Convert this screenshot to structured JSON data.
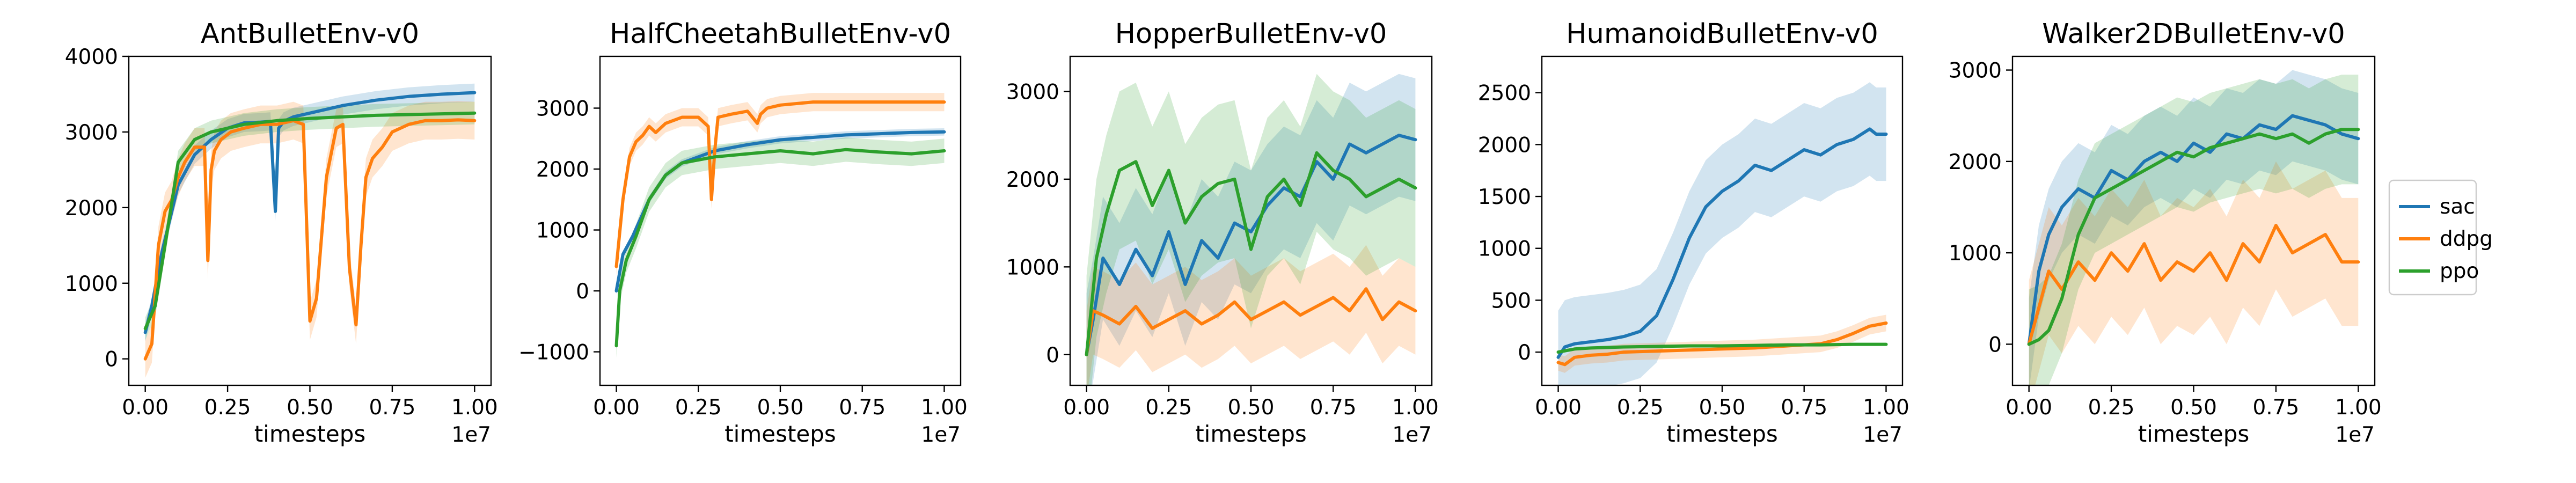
{
  "figure": {
    "x_label": "timesteps",
    "x_offset_label": "1e7",
    "x_ticks": [
      "0.00",
      "0.25",
      "0.50",
      "0.75",
      "1.00"
    ]
  },
  "legend": [
    {
      "name": "sac",
      "color": "#1f77b4"
    },
    {
      "name": "ddpg",
      "color": "#ff7f0e"
    },
    {
      "name": "ppo",
      "color": "#2ca02c"
    }
  ],
  "chart_data": [
    {
      "type": "line",
      "title": "AntBulletEnv-v0",
      "xlabel": "timesteps",
      "x_unit_multiplier": "1e7",
      "xlim": [
        -0.05,
        1.05
      ],
      "ylim": [
        -350,
        4000
      ],
      "y_ticks": [
        0,
        1000,
        2000,
        3000,
        4000
      ],
      "y_tick_labels": [
        "0",
        "1000",
        "2000",
        "3000",
        "4000"
      ],
      "series": [
        {
          "name": "sac",
          "color": "#1f77b4",
          "x": [
            0,
            0.02,
            0.05,
            0.1,
            0.15,
            0.2,
            0.25,
            0.3,
            0.35,
            0.38,
            0.395,
            0.405,
            0.42,
            0.45,
            0.5,
            0.6,
            0.7,
            0.8,
            0.9,
            1.0
          ],
          "y": [
            350,
            700,
            1400,
            2300,
            2700,
            2900,
            3050,
            3120,
            3130,
            3140,
            1950,
            3050,
            3140,
            3200,
            3250,
            3350,
            3420,
            3470,
            3500,
            3520
          ],
          "band": 120
        },
        {
          "name": "ddpg",
          "color": "#ff7f0e",
          "x": [
            0,
            0.02,
            0.04,
            0.06,
            0.08,
            0.1,
            0.12,
            0.15,
            0.18,
            0.19,
            0.2,
            0.21,
            0.23,
            0.26,
            0.3,
            0.35,
            0.4,
            0.45,
            0.48,
            0.5,
            0.52,
            0.55,
            0.58,
            0.6,
            0.62,
            0.64,
            0.655,
            0.67,
            0.69,
            0.72,
            0.75,
            0.8,
            0.85,
            0.9,
            0.95,
            1.0
          ],
          "y": [
            0,
            200,
            1500,
            1950,
            2100,
            2400,
            2600,
            2800,
            2800,
            1300,
            2500,
            2750,
            2900,
            3000,
            3050,
            3100,
            3100,
            3150,
            3100,
            500,
            800,
            2400,
            3050,
            3100,
            1200,
            450,
            1500,
            2400,
            2650,
            2800,
            3000,
            3100,
            3150,
            3150,
            3160,
            3150
          ],
          "band": 250
        },
        {
          "name": "ppo",
          "color": "#2ca02c",
          "x": [
            0,
            0.03,
            0.06,
            0.1,
            0.15,
            0.2,
            0.25,
            0.3,
            0.4,
            0.5,
            0.6,
            0.7,
            0.8,
            0.9,
            1.0
          ],
          "y": [
            400,
            700,
            1500,
            2600,
            2900,
            3000,
            3050,
            3100,
            3150,
            3180,
            3200,
            3220,
            3230,
            3240,
            3250
          ],
          "band": 150
        }
      ]
    },
    {
      "type": "line",
      "title": "HalfCheetahBulletEnv-v0",
      "xlabel": "timesteps",
      "x_unit_multiplier": "1e7",
      "xlim": [
        -0.05,
        1.05
      ],
      "ylim": [
        -1550,
        3850
      ],
      "y_ticks": [
        -1000,
        0,
        1000,
        2000,
        3000
      ],
      "y_tick_labels": [
        "−1000",
        "0",
        "1000",
        "2000",
        "3000"
      ],
      "series": [
        {
          "name": "sac",
          "color": "#1f77b4",
          "x": [
            0,
            0.02,
            0.05,
            0.1,
            0.15,
            0.2,
            0.3,
            0.4,
            0.5,
            0.6,
            0.7,
            0.8,
            0.9,
            1.0
          ],
          "y": [
            0,
            600,
            900,
            1500,
            1900,
            2100,
            2300,
            2400,
            2480,
            2520,
            2560,
            2580,
            2600,
            2610
          ],
          "band": 60
        },
        {
          "name": "ddpg",
          "color": "#ff7f0e",
          "x": [
            0,
            0.02,
            0.04,
            0.06,
            0.08,
            0.1,
            0.12,
            0.15,
            0.2,
            0.25,
            0.28,
            0.29,
            0.3,
            0.31,
            0.35,
            0.4,
            0.43,
            0.44,
            0.46,
            0.5,
            0.6,
            0.7,
            0.8,
            0.9,
            1.0
          ],
          "y": [
            400,
            1500,
            2200,
            2450,
            2550,
            2700,
            2600,
            2750,
            2850,
            2850,
            2700,
            1500,
            2300,
            2850,
            2900,
            2950,
            2750,
            2900,
            3000,
            3050,
            3100,
            3100,
            3100,
            3100,
            3100
          ],
          "band": 150
        },
        {
          "name": "ppo",
          "color": "#2ca02c",
          "x": [
            0,
            0.01,
            0.03,
            0.06,
            0.1,
            0.15,
            0.2,
            0.25,
            0.3,
            0.4,
            0.5,
            0.6,
            0.7,
            0.8,
            0.9,
            1.0
          ],
          "y": [
            -900,
            0,
            500,
            900,
            1500,
            1900,
            2100,
            2150,
            2200,
            2250,
            2300,
            2250,
            2320,
            2280,
            2250,
            2300
          ],
          "band": 200
        }
      ]
    },
    {
      "type": "line",
      "title": "HopperBulletEnv-v0",
      "xlabel": "timesteps",
      "x_unit_multiplier": "1e7",
      "xlim": [
        -0.05,
        1.05
      ],
      "ylim": [
        -350,
        3400
      ],
      "y_ticks": [
        0,
        1000,
        2000,
        3000
      ],
      "y_tick_labels": [
        "0",
        "1000",
        "2000",
        "3000"
      ],
      "series": [
        {
          "name": "sac",
          "color": "#1f77b4",
          "x": [
            0,
            0.02,
            0.05,
            0.1,
            0.15,
            0.2,
            0.25,
            0.3,
            0.35,
            0.4,
            0.45,
            0.5,
            0.55,
            0.6,
            0.65,
            0.7,
            0.75,
            0.8,
            0.85,
            0.9,
            0.95,
            1.0
          ],
          "y": [
            0,
            400,
            1100,
            800,
            1200,
            900,
            1400,
            800,
            1300,
            1100,
            1500,
            1400,
            1700,
            1900,
            1800,
            2200,
            2000,
            2400,
            2300,
            2400,
            2500,
            2450
          ],
          "band": 700
        },
        {
          "name": "ddpg",
          "color": "#ff7f0e",
          "x": [
            0,
            0.02,
            0.05,
            0.1,
            0.15,
            0.2,
            0.25,
            0.3,
            0.35,
            0.4,
            0.45,
            0.5,
            0.55,
            0.6,
            0.65,
            0.7,
            0.75,
            0.8,
            0.85,
            0.9,
            0.95,
            1.0
          ],
          "y": [
            0,
            500,
            450,
            350,
            550,
            300,
            400,
            500,
            350,
            450,
            600,
            400,
            500,
            600,
            450,
            550,
            650,
            500,
            750,
            400,
            600,
            500
          ],
          "band": 500
        },
        {
          "name": "ppo",
          "color": "#2ca02c",
          "x": [
            0,
            0.03,
            0.06,
            0.1,
            0.15,
            0.2,
            0.25,
            0.3,
            0.35,
            0.4,
            0.45,
            0.5,
            0.55,
            0.6,
            0.65,
            0.7,
            0.75,
            0.8,
            0.85,
            0.9,
            0.95,
            1.0
          ],
          "y": [
            0,
            1100,
            1600,
            2100,
            2200,
            1700,
            2100,
            1500,
            1800,
            1950,
            2000,
            1200,
            1800,
            2000,
            1700,
            2300,
            2100,
            2000,
            1800,
            1900,
            2000,
            1900
          ],
          "band": 900
        }
      ]
    },
    {
      "type": "line",
      "title": "HumanoidBulletEnv-v0",
      "xlabel": "timesteps",
      "x_unit_multiplier": "1e7",
      "xlim": [
        -0.05,
        1.05
      ],
      "ylim": [
        -320,
        2850
      ],
      "y_ticks": [
        0,
        500,
        1000,
        1500,
        2000,
        2500
      ],
      "y_tick_labels": [
        "0",
        "500",
        "1000",
        "1500",
        "2000",
        "2500"
      ],
      "series": [
        {
          "name": "sac",
          "color": "#1f77b4",
          "x": [
            0,
            0.02,
            0.05,
            0.1,
            0.15,
            0.2,
            0.25,
            0.3,
            0.35,
            0.4,
            0.45,
            0.5,
            0.55,
            0.6,
            0.65,
            0.7,
            0.75,
            0.8,
            0.85,
            0.9,
            0.95,
            0.97,
            1.0
          ],
          "y": [
            -50,
            50,
            80,
            100,
            120,
            150,
            200,
            350,
            700,
            1100,
            1400,
            1550,
            1650,
            1800,
            1750,
            1850,
            1950,
            1900,
            2000,
            2050,
            2150,
            2100,
            2100
          ],
          "band": 450
        },
        {
          "name": "ddpg",
          "color": "#ff7f0e",
          "x": [
            0,
            0.02,
            0.05,
            0.1,
            0.15,
            0.2,
            0.3,
            0.4,
            0.5,
            0.6,
            0.7,
            0.8,
            0.85,
            0.9,
            0.95,
            1.0
          ],
          "y": [
            -100,
            -120,
            -50,
            -30,
            -20,
            0,
            10,
            20,
            30,
            40,
            60,
            80,
            120,
            180,
            250,
            280
          ],
          "band": 80
        },
        {
          "name": "ppo",
          "color": "#2ca02c",
          "x": [
            0,
            0.05,
            0.1,
            0.2,
            0.3,
            0.4,
            0.5,
            0.6,
            0.7,
            0.8,
            0.9,
            1.0
          ],
          "y": [
            0,
            30,
            40,
            50,
            55,
            60,
            60,
            65,
            70,
            70,
            75,
            75
          ],
          "band": 15
        }
      ]
    },
    {
      "type": "line",
      "title": "Walker2DBulletEnv-v0",
      "xlabel": "timesteps",
      "x_unit_multiplier": "1e7",
      "xlim": [
        -0.05,
        1.05
      ],
      "ylim": [
        -450,
        3150
      ],
      "y_ticks": [
        0,
        1000,
        2000,
        3000
      ],
      "y_tick_labels": [
        "0",
        "1000",
        "2000",
        "3000"
      ],
      "series": [
        {
          "name": "sac",
          "color": "#1f77b4",
          "x": [
            0,
            0.03,
            0.06,
            0.1,
            0.15,
            0.2,
            0.25,
            0.3,
            0.35,
            0.4,
            0.45,
            0.5,
            0.55,
            0.6,
            0.65,
            0.7,
            0.75,
            0.8,
            0.85,
            0.9,
            0.95,
            1.0
          ],
          "y": [
            0,
            800,
            1200,
            1500,
            1700,
            1600,
            1900,
            1800,
            2000,
            2100,
            2000,
            2200,
            2100,
            2300,
            2250,
            2400,
            2350,
            2500,
            2450,
            2400,
            2300,
            2250
          ],
          "band": 500
        },
        {
          "name": "ddpg",
          "color": "#ff7f0e",
          "x": [
            0,
            0.03,
            0.06,
            0.1,
            0.15,
            0.2,
            0.25,
            0.3,
            0.35,
            0.4,
            0.45,
            0.5,
            0.55,
            0.6,
            0.65,
            0.7,
            0.75,
            0.8,
            0.85,
            0.9,
            0.95,
            1.0
          ],
          "y": [
            0,
            400,
            800,
            600,
            900,
            700,
            1000,
            800,
            1100,
            700,
            900,
            800,
            1000,
            700,
            1100,
            900,
            1300,
            1000,
            1100,
            1200,
            900,
            900
          ],
          "band": 700
        },
        {
          "name": "ppo",
          "color": "#2ca02c",
          "x": [
            0,
            0.03,
            0.06,
            0.1,
            0.15,
            0.2,
            0.25,
            0.3,
            0.35,
            0.4,
            0.45,
            0.5,
            0.55,
            0.6,
            0.65,
            0.7,
            0.75,
            0.8,
            0.85,
            0.9,
            0.95,
            1.0
          ],
          "y": [
            0,
            50,
            150,
            500,
            1200,
            1600,
            1700,
            1800,
            1900,
            2000,
            2100,
            2050,
            2150,
            2200,
            2250,
            2300,
            2250,
            2300,
            2200,
            2300,
            2350,
            2350
          ],
          "band": 600
        }
      ]
    }
  ]
}
